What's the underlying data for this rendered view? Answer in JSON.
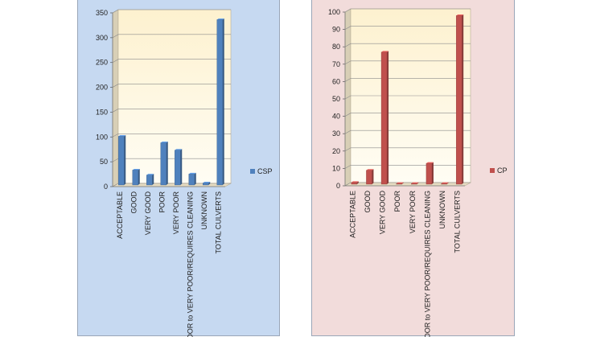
{
  "chart_data": [
    {
      "type": "bar",
      "categories": [
        "ACCEPTABLE",
        "GOOD",
        "VERY GOOD",
        "POOR",
        "VERY POOR",
        "POOR to VERY POOR/REQUIRES CLEANING",
        "UNKNOWN",
        "TOTAL CULVERTS"
      ],
      "series": [
        {
          "name": "CSP",
          "values": [
            98,
            30,
            20,
            85,
            70,
            22,
            4,
            333
          ],
          "color": "#4f81bd"
        }
      ],
      "yticks": [
        0,
        50,
        100,
        150,
        200,
        250,
        300,
        350
      ],
      "ylim": [
        0,
        350
      ],
      "panel_bg": "#c6d9f1",
      "legend": "right",
      "grid": true
    },
    {
      "type": "bar",
      "categories": [
        "ACCEPTABLE",
        "GOOD",
        "VERY GOOD",
        "POOR",
        "VERY POOR",
        "POOR to VERY POOR/REQUIRES CLEANING",
        "UNKNOWN",
        "TOTAL CULVERTS"
      ],
      "series": [
        {
          "name": "CP",
          "values": [
            1,
            8,
            76,
            0.3,
            0.3,
            12,
            0.3,
            97
          ],
          "color": "#c0504d"
        }
      ],
      "yticks": [
        0,
        10,
        20,
        30,
        40,
        50,
        60,
        70,
        80,
        90,
        100
      ],
      "ylim": [
        0,
        100
      ],
      "panel_bg": "#f2dcdb",
      "legend": "right",
      "grid": true
    }
  ]
}
